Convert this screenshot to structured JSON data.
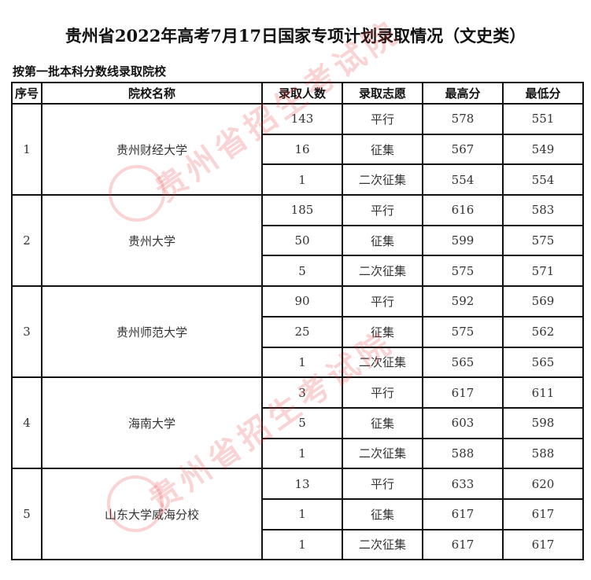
{
  "title": "贵州省2022年高考7月17日国家专项计划录取情况（文史类）",
  "subtitle": "按第一批本科分数线录取院校",
  "watermark": "贵州省招生考试院",
  "watermark_color": "#e63c3c",
  "table": {
    "headers": [
      "序号",
      "院校名称",
      "录取人数",
      "录取志愿",
      "最高分",
      "最低分"
    ],
    "schools": [
      {
        "no": "1",
        "name": "贵州财经大学",
        "rows": [
          [
            "143",
            "平行",
            "578",
            "551"
          ],
          [
            "16",
            "征集",
            "567",
            "549"
          ],
          [
            "1",
            "二次征集",
            "554",
            "554"
          ]
        ]
      },
      {
        "no": "2",
        "name": "贵州大学",
        "rows": [
          [
            "185",
            "平行",
            "616",
            "583"
          ],
          [
            "50",
            "征集",
            "599",
            "575"
          ],
          [
            "5",
            "二次征集",
            "575",
            "571"
          ]
        ]
      },
      {
        "no": "3",
        "name": "贵州师范大学",
        "rows": [
          [
            "90",
            "平行",
            "592",
            "569"
          ],
          [
            "25",
            "征集",
            "575",
            "562"
          ],
          [
            "1",
            "二次征集",
            "565",
            "565"
          ]
        ]
      },
      {
        "no": "4",
        "name": "海南大学",
        "rows": [
          [
            "3",
            "平行",
            "617",
            "611"
          ],
          [
            "5",
            "征集",
            "603",
            "598"
          ],
          [
            "1",
            "二次征集",
            "588",
            "588"
          ]
        ]
      },
      {
        "no": "5",
        "name": "山东大学威海分校",
        "rows": [
          [
            "13",
            "平行",
            "633",
            "620"
          ],
          [
            "1",
            "征集",
            "617",
            "617"
          ],
          [
            "1",
            "二次征集",
            "617",
            "617"
          ]
        ]
      }
    ]
  }
}
